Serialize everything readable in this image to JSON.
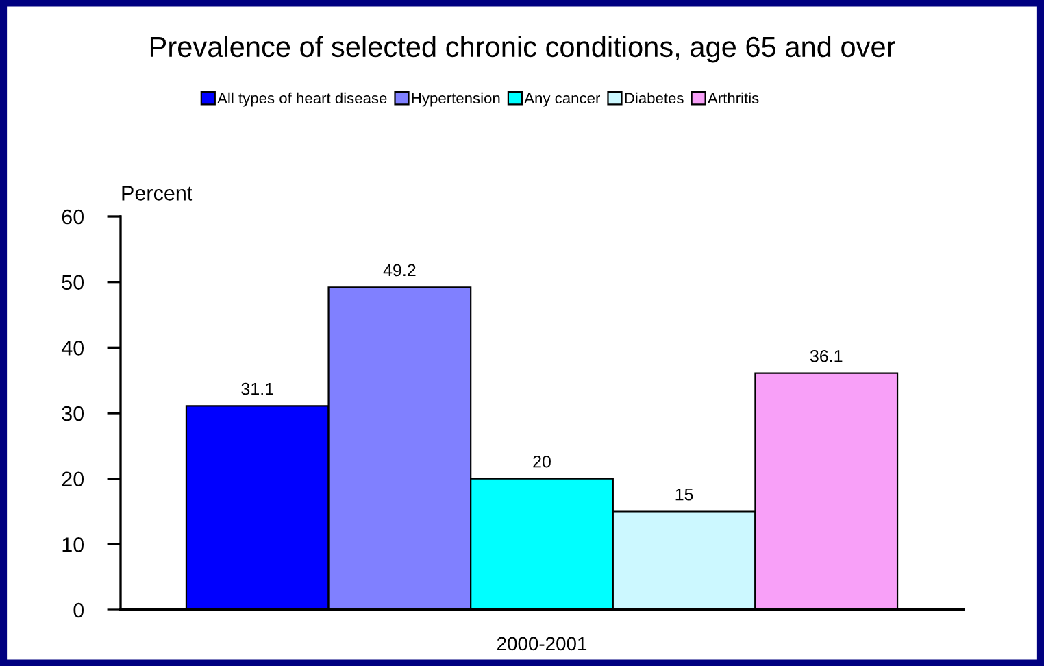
{
  "chart_data": {
    "type": "bar",
    "title": "Prevalence of selected chronic conditions, age 65 and over",
    "ylabel": "Percent",
    "categories": [
      "2000-2001"
    ],
    "series": [
      {
        "name": "All types of heart disease",
        "color": "#0000ff",
        "values": [
          31.1
        ]
      },
      {
        "name": "Hypertension",
        "color": "#8080ff",
        "values": [
          49.2
        ]
      },
      {
        "name": "Any cancer",
        "color": "#00ffff",
        "values": [
          20
        ]
      },
      {
        "name": "Diabetes",
        "color": "#ccf8ff",
        "values": [
          15
        ]
      },
      {
        "name": "Arthritis",
        "color": "#f8a0f8",
        "values": [
          36.1
        ]
      }
    ],
    "ylim": [
      0,
      60
    ],
    "yticks": [
      0,
      10,
      20,
      30,
      40,
      50,
      60
    ],
    "grid": false,
    "legend": "top",
    "data_labels": true
  }
}
